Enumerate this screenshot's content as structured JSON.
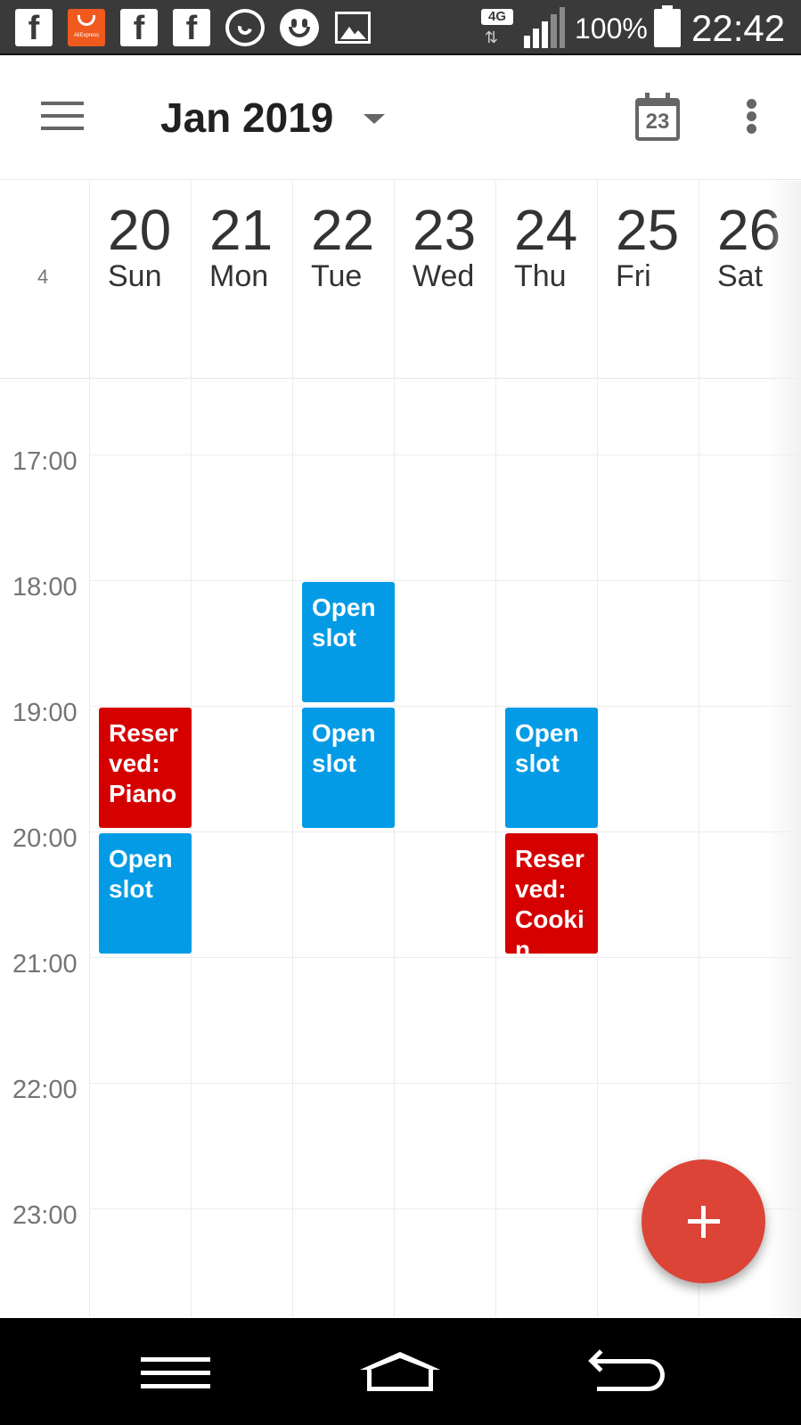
{
  "status_bar": {
    "notification_icons": [
      "facebook-icon",
      "aliexpress-icon",
      "facebook-icon",
      "facebook-icon",
      "whatsapp-icon",
      "smiley-icon",
      "gallery-icon"
    ],
    "aliexpress_text": "AliExpress",
    "facebook_glyph": "f",
    "network": "4G",
    "network_arrows": "⇅",
    "battery_percent": "100%",
    "time": "22:42"
  },
  "app_bar": {
    "title": "Jan 2019",
    "today_icon_day": "23"
  },
  "week": {
    "number": "4",
    "days": [
      {
        "num": "20",
        "name": "Sun"
      },
      {
        "num": "21",
        "name": "Mon"
      },
      {
        "num": "22",
        "name": "Tue"
      },
      {
        "num": "23",
        "name": "Wed"
      },
      {
        "num": "24",
        "name": "Thu"
      },
      {
        "num": "25",
        "name": "Fri"
      },
      {
        "num": "26",
        "name": "Sat"
      }
    ]
  },
  "hours": [
    "17:00",
    "18:00",
    "19:00",
    "20:00",
    "21:00",
    "22:00",
    "23:00"
  ],
  "events": [
    {
      "day": "Tue 22",
      "start": "18:00",
      "end": "19:00",
      "label": "Open slot",
      "type": "open"
    },
    {
      "day": "Sun 20",
      "start": "19:00",
      "end": "20:00",
      "label": "Reserved: Piano",
      "type": "reserved"
    },
    {
      "day": "Tue 22",
      "start": "19:00",
      "end": "20:00",
      "label": "Open slot",
      "type": "open"
    },
    {
      "day": "Thu 24",
      "start": "19:00",
      "end": "20:00",
      "label": "Open slot",
      "type": "open"
    },
    {
      "day": "Sun 20",
      "start": "20:00",
      "end": "21:00",
      "label": "Open slot",
      "type": "open"
    },
    {
      "day": "Thu 24",
      "start": "20:00",
      "end": "21:00",
      "label": "Reserved: Cookin",
      "type": "reserved"
    }
  ],
  "colors": {
    "open_slot": "#039be5",
    "reserved": "#d50000",
    "fab": "#db4437"
  },
  "fab": {
    "icon": "plus-icon"
  },
  "nav_bar": {
    "icons": [
      "recent-apps-icon",
      "home-icon",
      "back-icon"
    ]
  }
}
